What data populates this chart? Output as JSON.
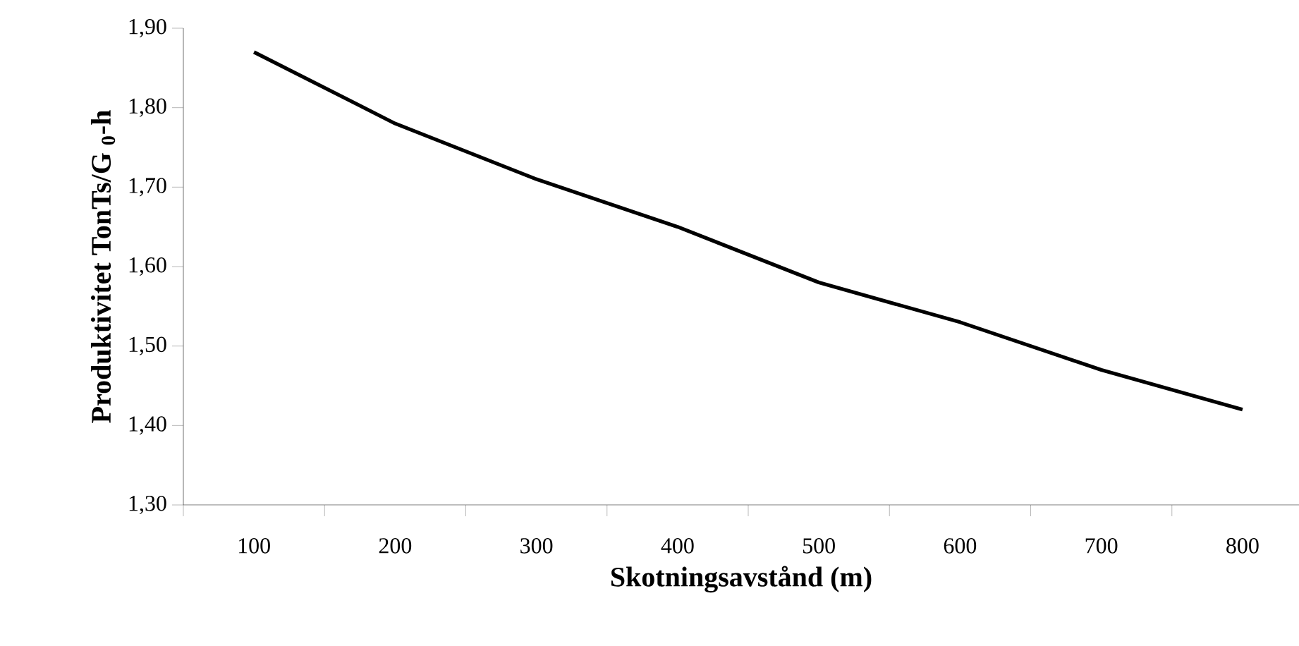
{
  "chart_data": {
    "type": "line",
    "xlabel": "Skotningsavstånd (m)",
    "ylabel": "Produktivitet TonTs/G $_{0}$-h",
    "categories": [
      "100",
      "200",
      "300",
      "400",
      "500",
      "600",
      "700",
      "800"
    ],
    "values": [
      1.87,
      1.78,
      1.71,
      1.65,
      1.58,
      1.53,
      1.47,
      1.42
    ],
    "color": "#000000",
    "ylim": [
      1.3,
      1.9
    ],
    "yticks": [
      {
        "value": 1.3,
        "label": "1,30"
      },
      {
        "value": 1.4,
        "label": "1,40"
      },
      {
        "value": 1.5,
        "label": "1,50"
      },
      {
        "value": 1.6,
        "label": "1,60"
      },
      {
        "value": 1.7,
        "label": "1,70"
      },
      {
        "value": 1.8,
        "label": "1,80"
      },
      {
        "value": 1.9,
        "label": "1,90"
      }
    ],
    "grid": false,
    "marker": "none",
    "line_style": "solid"
  }
}
